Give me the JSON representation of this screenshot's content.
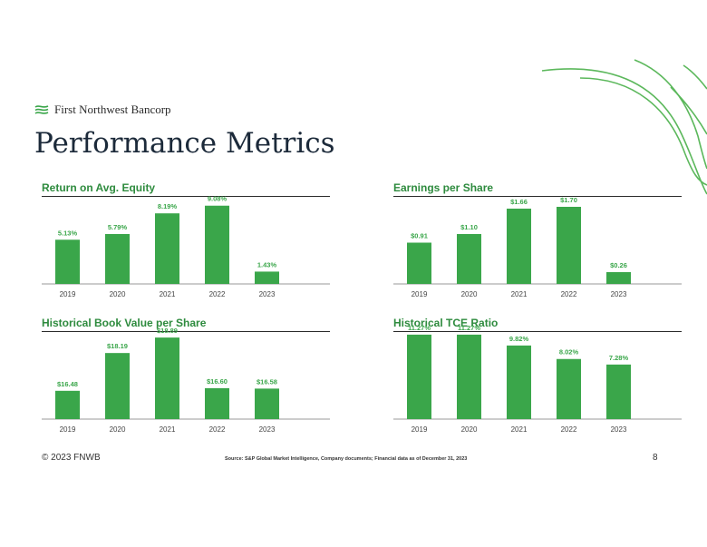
{
  "brand": {
    "name": "First Northwest Bancorp"
  },
  "page": {
    "title": "Performance Metrics"
  },
  "colors": {
    "bar": "#3aa64a",
    "label": "#3aa64a",
    "title": "#2e8b3e",
    "axis": "#9a9a9a"
  },
  "chart_data": [
    {
      "type": "bar",
      "title": "Return on Avg. Equity",
      "categories": [
        "2019",
        "2020",
        "2021",
        "2022",
        "2023"
      ],
      "values": [
        5.13,
        5.79,
        8.19,
        9.08,
        1.43
      ],
      "labels": [
        "5.13%",
        "5.79%",
        "8.19%",
        "9.08%",
        "1.43%"
      ],
      "ylim": [
        0,
        10
      ],
      "xlabel": "",
      "ylabel": ""
    },
    {
      "type": "bar",
      "title": "Earnings per Share",
      "categories": [
        "2019",
        "2020",
        "2021",
        "2022",
        "2023"
      ],
      "values": [
        0.91,
        1.1,
        1.66,
        1.7,
        0.26
      ],
      "labels": [
        "$0.91",
        "$1.10",
        "$1.66",
        "$1.70",
        "$0.26"
      ],
      "ylim": [
        0,
        1.9
      ],
      "xlabel": "",
      "ylabel": ""
    },
    {
      "type": "bar",
      "title": "Historical Book Value per Share",
      "categories": [
        "2019",
        "2020",
        "2021",
        "2022",
        "2023"
      ],
      "values": [
        16.48,
        18.19,
        18.89,
        16.6,
        16.58
      ],
      "labels": [
        "$16.48",
        "$18.19",
        "$18.89",
        "$16.60",
        "$16.58"
      ],
      "ylim": [
        15.2,
        19.1
      ],
      "xlabel": "",
      "ylabel": ""
    },
    {
      "type": "bar",
      "title": "Historical TCE Ratio",
      "categories": [
        "2019",
        "2020",
        "2021",
        "2022",
        "2023"
      ],
      "values": [
        11.27,
        11.27,
        9.82,
        8.02,
        7.28
      ],
      "labels": [
        "11.27%",
        "11.27%",
        "9.82%",
        "8.02%",
        "7.28%"
      ],
      "ylim": [
        0,
        11.5
      ],
      "xlabel": "",
      "ylabel": ""
    }
  ],
  "footer": {
    "copyright": "© 2023 FNWB",
    "source": "Source: S&P Global Market Intelligence, Company documents; Financial data as of December 31, 2023",
    "page_number": "8"
  }
}
